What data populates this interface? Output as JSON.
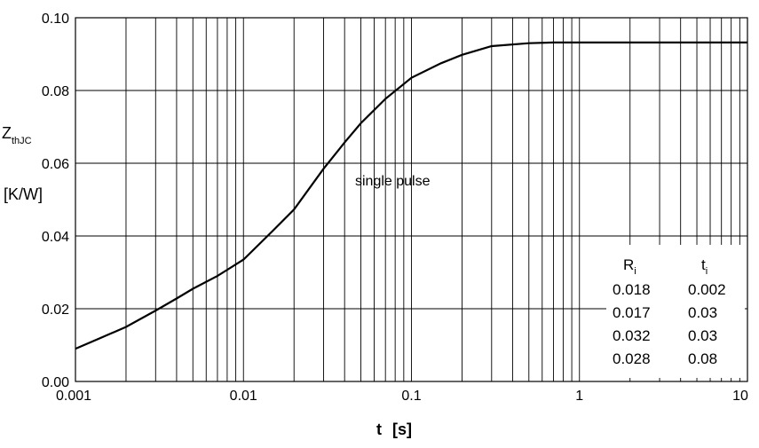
{
  "chart_data": {
    "type": "line",
    "x_scale": "log",
    "xlabel_symbol": "t",
    "xlabel_unit": "[s]",
    "ylabel_symbol": "Z",
    "ylabel_subscript": "thJC",
    "ylabel_unit": "[K/W]",
    "xlim": [
      0.001,
      10
    ],
    "ylim": [
      0,
      0.1
    ],
    "grid": true,
    "x_ticks": [
      0.001,
      0.01,
      0.1,
      1,
      10
    ],
    "x_tick_labels": [
      "0.001",
      "0.01",
      "0.1",
      "1",
      "10"
    ],
    "y_ticks": [
      0,
      0.02,
      0.04,
      0.06,
      0.08,
      0.1
    ],
    "y_tick_labels": [
      "0.00",
      "0.02",
      "0.04",
      "0.06",
      "0.08",
      "0.10"
    ],
    "annotation": "single pulse",
    "series": [
      {
        "x": [
          0.001,
          0.0015,
          0.002,
          0.003,
          0.004,
          0.005,
          0.007,
          0.01,
          0.015,
          0.02,
          0.03,
          0.04,
          0.05,
          0.07,
          0.1,
          0.15,
          0.2,
          0.3,
          0.5,
          0.7,
          1,
          2,
          5,
          10
        ],
        "y": [
          0.009,
          0.0125,
          0.015,
          0.0195,
          0.0228,
          0.0255,
          0.029,
          0.0335,
          0.0415,
          0.0473,
          0.0585,
          0.0657,
          0.071,
          0.0777,
          0.0835,
          0.0875,
          0.0898,
          0.0922,
          0.093,
          0.0932,
          0.0932,
          0.0932,
          0.0932,
          0.0932
        ]
      }
    ],
    "table": {
      "col_headers": [
        {
          "symbol": "R",
          "subscript": "i"
        },
        {
          "symbol": "t",
          "subscript": "i"
        }
      ],
      "rows": [
        [
          "0.018",
          "0.002"
        ],
        [
          "0.017",
          "0.03"
        ],
        [
          "0.032",
          "0.03"
        ],
        [
          "0.028",
          "0.08"
        ]
      ]
    }
  }
}
